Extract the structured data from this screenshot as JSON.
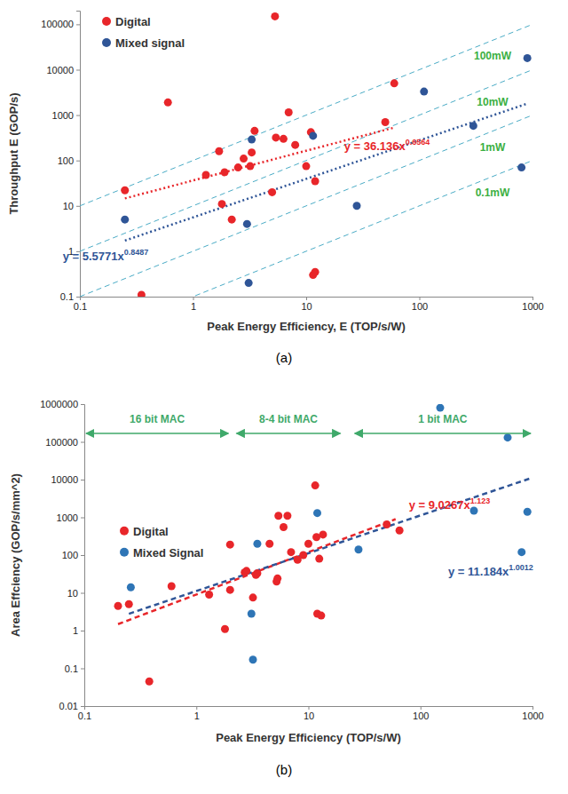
{
  "chart_data": [
    {
      "type": "scatter",
      "title": "(a)",
      "x_label": "Peak Energy Efficiency, E (TOP/s/W)",
      "y_label": "Throughput E (GOP/s)",
      "log": true,
      "legend": "upper left",
      "xlim": [
        0.1,
        1000
      ],
      "xticks": [
        0.1,
        1,
        10,
        100,
        1000
      ],
      "ylim": [
        0.1,
        200000
      ],
      "yticks": [
        0.1,
        1,
        10,
        100,
        1000,
        10000,
        100000
      ],
      "series": [
        {
          "name": "Digital",
          "color": "#e8262a",
          "marker": "circle",
          "x": [
            0.25,
            0.35,
            0.6,
            1.3,
            1.7,
            1.8,
            1.9,
            2.2,
            2.5,
            2.8,
            3.2,
            3.3,
            3.5,
            5,
            5.3,
            5.4,
            6.3,
            7,
            8,
            10,
            11,
            11.5,
            12,
            12,
            50,
            60
          ],
          "values": [
            22,
            0.11,
            1900,
            48,
            160,
            11,
            55,
            5,
            70,
            110,
            75,
            150,
            450,
            20,
            150000,
            320,
            300,
            1150,
            220,
            75,
            420,
            0.3,
            0.35,
            35,
            700,
            5000
          ]
        },
        {
          "name": "Mixed signal",
          "color": "#2f5597",
          "marker": "circle",
          "x": [
            0.25,
            3,
            3.1,
            3.3,
            11.5,
            28,
            110,
            300,
            800,
            900
          ],
          "values": [
            5,
            4,
            0.2,
            290,
            350,
            10,
            3300,
            580,
            70,
            18000
          ]
        }
      ],
      "trendlines": [
        {
          "label": "y = 36.136x",
          "exponent": "0.6564",
          "color": "#e8262a",
          "line_style": "dotted",
          "x": [
            0.25,
            60
          ],
          "values": [
            14.6,
            531
          ]
        },
        {
          "label": "y = 5.5771x",
          "exponent": "0.8487",
          "color": "#2f5597",
          "line_style": "dotted",
          "x": [
            0.25,
            900
          ],
          "values": [
            1.72,
            1790
          ]
        }
      ],
      "reference_lines": [
        {
          "label": "100mW",
          "color": "#4bacc6",
          "line_style": "dashed",
          "x": [
            0.1,
            1000
          ],
          "values": [
            10,
            100000
          ]
        },
        {
          "label": "10mW",
          "color": "#4bacc6",
          "line_style": "dashed",
          "x": [
            0.1,
            1000
          ],
          "values": [
            1,
            10000
          ]
        },
        {
          "label": "1mW",
          "color": "#4bacc6",
          "line_style": "dashed",
          "x": [
            0.1,
            1000
          ],
          "values": [
            0.1,
            1000
          ]
        },
        {
          "label": "0.1mW",
          "color": "#4bacc6",
          "line_style": "dashed",
          "x": [
            0.1,
            1000
          ],
          "values": [
            0.01,
            100
          ]
        }
      ]
    },
    {
      "type": "scatter",
      "title": "(b)",
      "x_label": "Peak Energy Efficiency (TOP/s/W)",
      "y_label": "Area Effciency (GOP/s/mm^2)",
      "log": true,
      "legend": "center left",
      "xlim": [
        0.1,
        1000
      ],
      "xticks": [
        0.1,
        1,
        10,
        100,
        1000
      ],
      "ylim": [
        0.01,
        1000000
      ],
      "yticks": [
        0.01,
        0.1,
        1,
        10,
        100,
        1000,
        10000,
        100000,
        1000000
      ],
      "series": [
        {
          "name": "Digital",
          "color": "#e8262a",
          "marker": "circle",
          "x": [
            0.2,
            0.25,
            0.38,
            0.6,
            1.3,
            1.8,
            2,
            2,
            2.7,
            2.8,
            3.2,
            3.4,
            3.5,
            4.5,
            5.2,
            5.3,
            5.4,
            6,
            6.5,
            7,
            8,
            9,
            10,
            11.5,
            11.8,
            12,
            12.5,
            13,
            13.5,
            50,
            65
          ],
          "values": [
            4.5,
            5,
            0.045,
            15,
            9,
            1.1,
            12,
            190,
            35,
            38,
            7.5,
            30,
            33,
            200,
            20,
            24,
            1100,
            550,
            1100,
            120,
            75,
            100,
            200,
            7000,
            300,
            2.8,
            80,
            2.5,
            350,
            650,
            450
          ]
        },
        {
          "name": "Mixed Signal",
          "color": "#2e75b6",
          "marker": "circle",
          "x": [
            0.26,
            3.1,
            3.2,
            3.5,
            12,
            28,
            150,
            300,
            600,
            800,
            900
          ],
          "values": [
            14,
            2.8,
            0.17,
            200,
            1300,
            140,
            800000,
            1500,
            130000,
            120,
            1400
          ]
        }
      ],
      "trendlines": [
        {
          "label": "y = 9.0267x",
          "exponent": "1.123",
          "color": "#e8262a",
          "line_style": "dashed",
          "x": [
            0.2,
            60
          ],
          "values": [
            1.48,
            896
          ]
        },
        {
          "label": "y = 11.184x",
          "exponent": "1.0012",
          "color": "#2f5597",
          "line_style": "dashed",
          "x": [
            0.25,
            1000
          ],
          "values": [
            2.79,
            11274
          ]
        }
      ],
      "annotations": [
        {
          "label": "16 bit MAC",
          "x": [
            0.1,
            2
          ]
        },
        {
          "label": "8-4 bit MAC",
          "x": [
            2.2,
            20
          ]
        },
        {
          "label": "1 bit MAC",
          "x": [
            25,
            1000
          ]
        }
      ]
    }
  ]
}
